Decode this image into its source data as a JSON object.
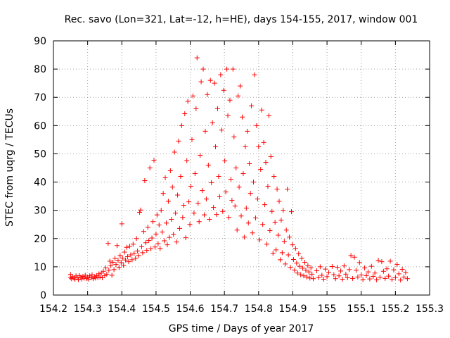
{
  "chart_data": {
    "type": "scatter",
    "title": "Rec. savo (Lon=321, Lat=-12, h=HE), days 154-155, 2017, window 001",
    "xlabel": "GPS time / Days of year 2017",
    "ylabel": "STEC from uqrg / TECUs",
    "xlim": [
      154.2,
      155.3
    ],
    "ylim": [
      0,
      90
    ],
    "grid": true,
    "marker": "+",
    "marker_color": "#ff0000",
    "x_ticks": [
      154.2,
      154.3,
      154.4,
      154.5,
      154.6,
      154.7,
      154.8,
      154.9,
      155.0,
      155.1,
      155.2,
      155.3
    ],
    "x_tick_labels": [
      "154.2",
      "154.3",
      "154.4",
      "154.5",
      "154.6",
      "154.7",
      "154.8",
      "154.9",
      "155",
      "155.1",
      "155.2",
      "155.3"
    ],
    "y_ticks": [
      0,
      10,
      20,
      30,
      40,
      50,
      60,
      70,
      80,
      90
    ],
    "y_tick_labels": [
      "0",
      "10",
      "20",
      "30",
      "40",
      "50",
      "60",
      "70",
      "80",
      "90"
    ],
    "series": [
      {
        "name": "STEC",
        "points": [
          [
            154.25,
            6.2
          ],
          [
            154.25,
            7.3
          ],
          [
            154.253,
            5.8
          ],
          [
            154.256,
            6.5
          ],
          [
            154.26,
            6.0
          ],
          [
            154.263,
            5.6
          ],
          [
            154.266,
            6.8
          ],
          [
            154.27,
            6.1
          ],
          [
            154.273,
            5.5
          ],
          [
            154.276,
            6.9
          ],
          [
            154.28,
            6.3
          ],
          [
            154.283,
            5.7
          ],
          [
            154.286,
            6.6
          ],
          [
            154.29,
            6.0
          ],
          [
            154.293,
            7.0
          ],
          [
            154.296,
            5.9
          ],
          [
            154.3,
            6.4
          ],
          [
            154.303,
            5.6
          ],
          [
            154.306,
            6.8
          ],
          [
            154.31,
            6.1
          ],
          [
            154.313,
            7.2
          ],
          [
            154.316,
            5.8
          ],
          [
            154.32,
            6.5
          ],
          [
            154.323,
            6.0
          ],
          [
            154.326,
            6.9
          ],
          [
            154.33,
            6.2
          ],
          [
            154.333,
            7.5
          ],
          [
            154.336,
            6.4
          ],
          [
            154.34,
            7.8
          ],
          [
            154.343,
            6.1
          ],
          [
            154.346,
            8.4
          ],
          [
            154.35,
            6.9
          ],
          [
            154.353,
            9.6
          ],
          [
            154.356,
            7.4
          ],
          [
            154.36,
            18.3
          ],
          [
            154.362,
            8.8
          ],
          [
            154.365,
            12.0
          ],
          [
            154.368,
            10.4
          ],
          [
            154.371,
            7.0
          ],
          [
            154.374,
            11.6
          ],
          [
            154.377,
            9.0
          ],
          [
            154.38,
            13.0
          ],
          [
            154.383,
            10.8
          ],
          [
            154.386,
            17.5
          ],
          [
            154.389,
            12.3
          ],
          [
            154.392,
            9.8
          ],
          [
            154.395,
            14.0
          ],
          [
            154.398,
            11.5
          ],
          [
            154.4,
            25.2
          ],
          [
            154.402,
            13.1
          ],
          [
            154.405,
            10.5
          ],
          [
            154.408,
            15.2
          ],
          [
            154.411,
            12.4
          ],
          [
            154.414,
            16.9
          ],
          [
            154.417,
            13.6
          ],
          [
            154.42,
            11.8
          ],
          [
            154.423,
            17.3
          ],
          [
            154.426,
            14.2
          ],
          [
            154.43,
            12.5
          ],
          [
            154.433,
            18.0
          ],
          [
            154.436,
            14.8
          ],
          [
            154.44,
            13.0
          ],
          [
            154.443,
            20.0
          ],
          [
            154.446,
            15.6
          ],
          [
            154.449,
            14.0
          ],
          [
            154.452,
            29.3
          ],
          [
            154.455,
            30.1
          ],
          [
            154.458,
            17.1
          ],
          [
            154.461,
            15.0
          ],
          [
            154.464,
            22.5
          ],
          [
            154.467,
            40.5
          ],
          [
            154.47,
            18.5
          ],
          [
            154.473,
            15.8
          ],
          [
            154.476,
            24.0
          ],
          [
            154.479,
            19.3
          ],
          [
            154.482,
            45.0
          ],
          [
            154.485,
            16.4
          ],
          [
            154.488,
            20.2
          ],
          [
            154.491,
            26.0
          ],
          [
            154.494,
            47.7
          ],
          [
            154.497,
            17.0
          ],
          [
            154.5,
            21.6
          ],
          [
            154.503,
            28.4
          ],
          [
            154.506,
            18.2
          ],
          [
            154.509,
            24.8
          ],
          [
            154.512,
            16.5
          ],
          [
            154.515,
            30.0
          ],
          [
            154.518,
            22.3
          ],
          [
            154.521,
            36.0
          ],
          [
            154.524,
            19.2
          ],
          [
            154.527,
            41.5
          ],
          [
            154.53,
            25.5
          ],
          [
            154.533,
            17.8
          ],
          [
            154.536,
            33.2
          ],
          [
            154.539,
            20.4
          ],
          [
            154.542,
            44.0
          ],
          [
            154.545,
            26.8
          ],
          [
            154.548,
            38.2
          ],
          [
            154.551,
            21.5
          ],
          [
            154.554,
            50.6
          ],
          [
            154.557,
            29.0
          ],
          [
            154.56,
            18.8
          ],
          [
            154.563,
            35.4
          ],
          [
            154.566,
            54.5
          ],
          [
            154.569,
            23.6
          ],
          [
            154.572,
            42.0
          ],
          [
            154.575,
            60.0
          ],
          [
            154.578,
            27.5
          ],
          [
            154.581,
            31.8
          ],
          [
            154.584,
            64.2
          ],
          [
            154.587,
            20.3
          ],
          [
            154.59,
            47.6
          ],
          [
            154.593,
            68.6
          ],
          [
            154.596,
            33.0
          ],
          [
            154.599,
            25.0
          ],
          [
            154.602,
            38.5
          ],
          [
            154.605,
            55.0
          ],
          [
            154.608,
            70.5
          ],
          [
            154.611,
            29.0
          ],
          [
            154.614,
            43.0
          ],
          [
            154.617,
            66.0
          ],
          [
            154.62,
            84.0
          ],
          [
            154.623,
            32.5
          ],
          [
            154.626,
            26.0
          ],
          [
            154.629,
            49.5
          ],
          [
            154.632,
            75.5
          ],
          [
            154.635,
            37.0
          ],
          [
            154.638,
            80.0
          ],
          [
            154.641,
            28.4
          ],
          [
            154.644,
            58.0
          ],
          [
            154.647,
            34.0
          ],
          [
            154.65,
            71.0
          ],
          [
            154.653,
            46.0
          ],
          [
            154.656,
            26.8
          ],
          [
            154.659,
            76.0
          ],
          [
            154.662,
            39.8
          ],
          [
            154.665,
            61.0
          ],
          [
            154.668,
            31.0
          ],
          [
            154.671,
            75.0
          ],
          [
            154.674,
            52.5
          ],
          [
            154.677,
            28.5
          ],
          [
            154.68,
            66.0
          ],
          [
            154.683,
            42.0
          ],
          [
            154.686,
            34.8
          ],
          [
            154.689,
            78.0
          ],
          [
            154.692,
            58.4
          ],
          [
            154.695,
            29.6
          ],
          [
            154.698,
            72.5
          ],
          [
            154.701,
            47.5
          ],
          [
            154.704,
            36.5
          ],
          [
            154.707,
            80.0
          ],
          [
            154.71,
            63.5
          ],
          [
            154.713,
            27.5
          ],
          [
            154.716,
            69.0
          ],
          [
            154.719,
            41.0
          ],
          [
            154.722,
            33.5
          ],
          [
            154.725,
            80.0
          ],
          [
            154.728,
            56.0
          ],
          [
            154.731,
            31.5
          ],
          [
            154.734,
            45.0
          ],
          [
            154.737,
            23.0
          ],
          [
            154.74,
            70.5
          ],
          [
            154.743,
            38.2
          ],
          [
            154.746,
            74.0
          ],
          [
            154.749,
            28.0
          ],
          [
            154.752,
            63.0
          ],
          [
            154.755,
            43.0
          ],
          [
            154.758,
            20.5
          ],
          [
            154.761,
            52.5
          ],
          [
            154.764,
            30.8
          ],
          [
            154.767,
            58.0
          ],
          [
            154.77,
            25.5
          ],
          [
            154.773,
            46.5
          ],
          [
            154.776,
            36.0
          ],
          [
            154.779,
            67.0
          ],
          [
            154.782,
            22.0
          ],
          [
            154.785,
            40.0
          ],
          [
            154.788,
            78.0
          ],
          [
            154.791,
            27.3
          ],
          [
            154.794,
            60.0
          ],
          [
            154.797,
            34.0
          ],
          [
            154.8,
            52.5
          ],
          [
            154.803,
            19.5
          ],
          [
            154.806,
            44.5
          ],
          [
            154.809,
            65.5
          ],
          [
            154.812,
            25.0
          ],
          [
            154.815,
            54.0
          ],
          [
            154.818,
            32.0
          ],
          [
            154.821,
            47.0
          ],
          [
            154.824,
            18.0
          ],
          [
            154.827,
            38.5
          ],
          [
            154.83,
            63.5
          ],
          [
            154.833,
            22.8
          ],
          [
            154.836,
            49.0
          ],
          [
            154.839,
            29.6
          ],
          [
            154.842,
            14.8
          ],
          [
            154.845,
            42.0
          ],
          [
            154.848,
            25.8
          ],
          [
            154.851,
            16.0
          ],
          [
            154.854,
            37.5
          ],
          [
            154.857,
            21.2
          ],
          [
            154.86,
            33.2
          ],
          [
            154.863,
            12.5
          ],
          [
            154.866,
            26.5
          ],
          [
            154.869,
            15.0
          ],
          [
            154.872,
            30.0
          ],
          [
            154.875,
            19.0
          ],
          [
            154.878,
            11.0
          ],
          [
            154.881,
            23.0
          ],
          [
            154.884,
            37.5
          ],
          [
            154.887,
            14.2
          ],
          [
            154.89,
            20.5
          ],
          [
            154.893,
            9.8
          ],
          [
            154.896,
            29.5
          ],
          [
            154.899,
            17.8
          ],
          [
            154.902,
            12.6
          ],
          [
            154.905,
            8.8
          ],
          [
            154.908,
            16.5
          ],
          [
            154.911,
            11.3
          ],
          [
            154.914,
            7.8
          ],
          [
            154.917,
            14.6
          ],
          [
            154.92,
            10.2
          ],
          [
            154.923,
            7.2
          ],
          [
            154.926,
            13.0
          ],
          [
            154.929,
            9.5
          ],
          [
            154.932,
            6.8
          ],
          [
            154.935,
            11.6
          ],
          [
            154.938,
            8.8
          ],
          [
            154.941,
            6.4
          ],
          [
            154.944,
            10.4
          ],
          [
            154.947,
            8.2
          ],
          [
            154.95,
            6.0
          ],
          [
            154.953,
            9.6
          ],
          [
            154.956,
            7.4
          ],
          [
            154.96,
            5.8
          ],
          [
            154.97,
            8.6
          ],
          [
            154.975,
            6.2
          ],
          [
            154.98,
            10.0
          ],
          [
            154.985,
            7.0
          ],
          [
            154.99,
            5.6
          ],
          [
            154.995,
            9.2
          ],
          [
            155.0,
            6.5
          ],
          [
            155.005,
            8.0
          ],
          [
            155.015,
            10.1
          ],
          [
            155.02,
            7.2
          ],
          [
            155.025,
            5.8
          ],
          [
            155.03,
            9.8
          ],
          [
            155.035,
            6.8
          ],
          [
            155.04,
            8.5
          ],
          [
            155.045,
            5.6
          ],
          [
            155.05,
            10.3
          ],
          [
            155.055,
            7.4
          ],
          [
            155.06,
            6.1
          ],
          [
            155.065,
            9.0
          ],
          [
            155.07,
            14.0
          ],
          [
            155.075,
            5.9
          ],
          [
            155.08,
            13.4
          ],
          [
            155.085,
            8.8
          ],
          [
            155.09,
            6.4
          ],
          [
            155.095,
            11.5
          ],
          [
            155.1,
            7.1
          ],
          [
            155.105,
            5.5
          ],
          [
            155.11,
            9.6
          ],
          [
            155.115,
            6.9
          ],
          [
            155.12,
            8.2
          ],
          [
            155.125,
            5.7
          ],
          [
            155.13,
            10.2
          ],
          [
            155.135,
            6.6
          ],
          [
            155.14,
            7.8
          ],
          [
            155.145,
            5.4
          ],
          [
            155.15,
            12.3
          ],
          [
            155.155,
            6.3
          ],
          [
            155.16,
            11.8
          ],
          [
            155.165,
            8.4
          ],
          [
            155.17,
            5.9
          ],
          [
            155.175,
            9.3
          ],
          [
            155.18,
            6.7
          ],
          [
            155.185,
            12.0
          ],
          [
            155.19,
            5.5
          ],
          [
            155.195,
            8.9
          ],
          [
            155.2,
            6.2
          ],
          [
            155.205,
            10.8
          ],
          [
            155.21,
            7.5
          ],
          [
            155.215,
            5.3
          ],
          [
            155.22,
            9.1
          ],
          [
            155.225,
            6.4
          ],
          [
            155.23,
            8.0
          ],
          [
            155.235,
            5.8
          ]
        ]
      }
    ]
  }
}
